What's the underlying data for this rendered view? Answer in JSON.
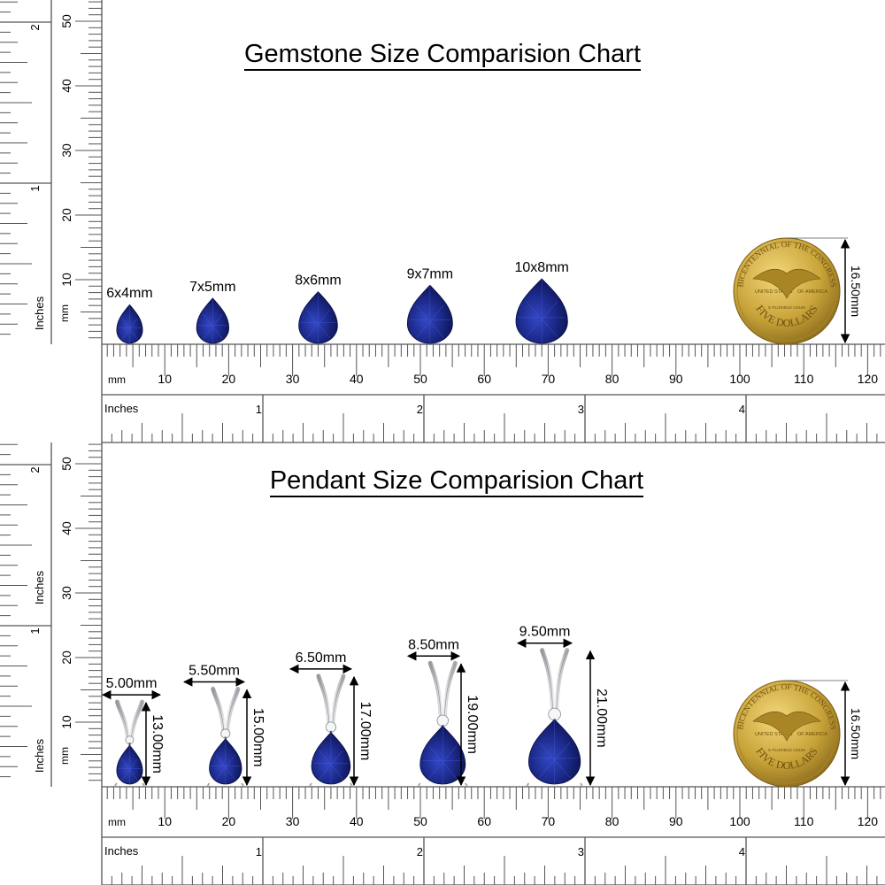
{
  "colors": {
    "stone": "#1c2a8a",
    "stone_dark": "#0a0f45",
    "coin": "#c9a43a",
    "metal": "#d8d8dc",
    "ruler": "#555555"
  },
  "rulers": {
    "mm_label": "mm",
    "inches_label": "Inches",
    "mm_ticks": [
      "10",
      "20",
      "30",
      "40",
      "50",
      "60",
      "70",
      "80",
      "90",
      "100",
      "110",
      "120"
    ],
    "inch_ticks": [
      "1",
      "2",
      "3",
      "4"
    ],
    "vertical_mm_ticks": [
      "10",
      "20",
      "30",
      "40",
      "50"
    ],
    "vertical_inch_ticks": [
      "1",
      "2"
    ]
  },
  "gemstone_chart": {
    "title": "Gemstone Size Comparision Chart",
    "stones": [
      {
        "label": "6x4mm",
        "length_mm": 6,
        "width_mm": 4,
        "center_mm": 4.5
      },
      {
        "label": "7x5mm",
        "length_mm": 7,
        "width_mm": 5,
        "center_mm": 17.5
      },
      {
        "label": "8x6mm",
        "length_mm": 8,
        "width_mm": 6,
        "center_mm": 34
      },
      {
        "label": "9x7mm",
        "length_mm": 9,
        "width_mm": 7,
        "center_mm": 51.5
      },
      {
        "label": "10x8mm",
        "length_mm": 10,
        "width_mm": 8,
        "center_mm": 69
      }
    ],
    "coin": {
      "dimension": "16.50mm",
      "legend_top": "BICENTENNIAL OF THE CONGRESS",
      "legend_bottom": "FIVE DOLLARS",
      "left": "UNITED STATES",
      "right": "OF AMERICA",
      "motto": "E PLURIBUS UNUM"
    }
  },
  "pendant_chart": {
    "title": "Pendant Size Comparision Chart",
    "extra_inches_label": "Inches",
    "pendants": [
      {
        "width": "5.00mm",
        "height": "13.00mm",
        "height_mm": 13,
        "stone_length_mm": 6,
        "stone_width_mm": 4,
        "center_mm": 2.5
      },
      {
        "width": "5.50mm",
        "height": "15.00mm",
        "height_mm": 15,
        "stone_length_mm": 7,
        "stone_width_mm": 5,
        "center_mm": 17.5
      },
      {
        "width": "6.50mm",
        "height": "17.00mm",
        "height_mm": 17,
        "stone_length_mm": 8,
        "stone_width_mm": 6,
        "center_mm": 34
      },
      {
        "width": "8.50mm",
        "height": "19.00mm",
        "height_mm": 19,
        "stone_length_mm": 9,
        "stone_width_mm": 7,
        "center_mm": 51.5
      },
      {
        "width": "9.50mm",
        "height": "21.00mm",
        "height_mm": 21,
        "stone_length_mm": 10,
        "stone_width_mm": 8,
        "center_mm": 69
      }
    ],
    "coin": {
      "dimension": "16.50mm",
      "legend_top": "BICENTENNIAL OF THE CONGRESS",
      "legend_bottom": "FIVE DOLLARS",
      "left": "UNITED STATES",
      "right": "OF AMERICA",
      "motto": "E PLURIBUS UNUM"
    }
  }
}
